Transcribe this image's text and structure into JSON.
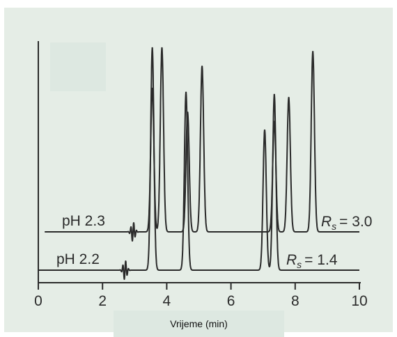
{
  "chart_data": {
    "type": "line",
    "xlabel": "Vrijeme (min)",
    "xlim": [
      0,
      10
    ],
    "x_ticks": [
      "0",
      "2",
      "4",
      "6",
      "8",
      "10"
    ],
    "series": [
      {
        "name": "pH 2.3",
        "baseline_start": 0.2,
        "baseline_end": 10,
        "peaks": [
          {
            "t": 3.55,
            "h": 0.78
          },
          {
            "t": 3.85,
            "h": 1.0
          },
          {
            "t": 4.65,
            "h": 0.65
          },
          {
            "t": 5.1,
            "h": 0.9
          },
          {
            "t": 7.35,
            "h": 0.6
          },
          {
            "t": 7.8,
            "h": 0.73
          },
          {
            "t": 8.55,
            "h": 0.98
          }
        ],
        "resolution_label": {
          "symbol": "R",
          "sub": "s",
          "value": "= 3.0"
        }
      },
      {
        "name": "pH 2.2",
        "baseline_start": 0.0,
        "baseline_end": 10,
        "peaks": [
          {
            "t": 3.55,
            "h": 1.0
          },
          {
            "t": 4.6,
            "h": 0.8
          },
          {
            "t": 7.05,
            "h": 0.63
          },
          {
            "t": 7.35,
            "h": 0.79
          }
        ],
        "resolution_label": {
          "symbol": "R",
          "sub": "s",
          "value": "= 1.4"
        }
      }
    ]
  }
}
